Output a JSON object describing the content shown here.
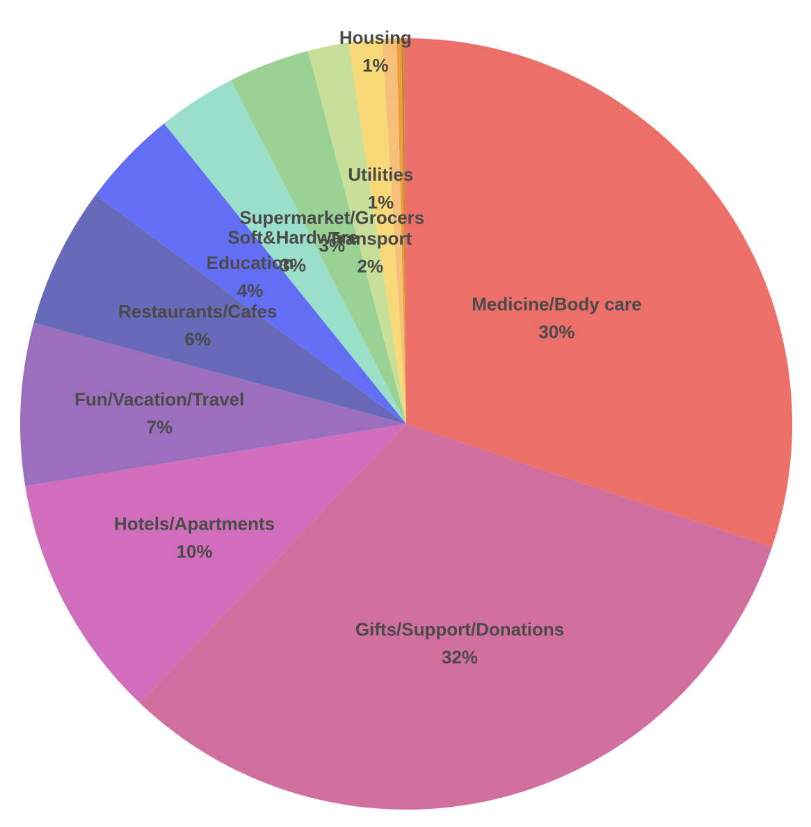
{
  "chart_data": {
    "type": "pie",
    "title": "",
    "start_angle_deg": 0,
    "direction": "clockwise",
    "slices": [
      {
        "label": "Medicine/Body care",
        "percent_label": "30%",
        "value": 30.2,
        "color": "#ec6f69",
        "show_label": true
      },
      {
        "label": "Gifts/Support/Donations",
        "percent_label": "32%",
        "value": 32.0,
        "color": "#d16f9e",
        "show_label": true
      },
      {
        "label": "Hotels/Apartments",
        "percent_label": "10%",
        "value": 10.3,
        "color": "#d06ebc",
        "show_label": true
      },
      {
        "label": "Fun/Vacation/Travel",
        "percent_label": "7%",
        "value": 6.8,
        "color": "#9b6fbd",
        "show_label": true
      },
      {
        "label": "Restaurants/Cafes",
        "percent_label": "6%",
        "value": 5.9,
        "color": "#666ab9",
        "show_label": true
      },
      {
        "label": "Education",
        "percent_label": "4%",
        "value": 4.1,
        "color": "#626ff4",
        "show_label": true
      },
      {
        "label": "Soft&Hardware",
        "percent_label": "3%",
        "value": 3.3,
        "color": "#9adfc9",
        "show_label": true
      },
      {
        "label": "Supermarket/Grocers",
        "percent_label": "3%",
        "value": 3.4,
        "color": "#9ad194",
        "show_label": true
      },
      {
        "label": "Transport",
        "percent_label": "2%",
        "value": 1.7,
        "color": "#c7df98",
        "show_label": true
      },
      {
        "label": "Utilities",
        "percent_label": "1%",
        "value": 1.4,
        "color": "#f8d978",
        "show_label": true
      },
      {
        "label": "Housing",
        "percent_label": "1%",
        "value": 0.6,
        "color": "#f6c07a",
        "show_label": true
      },
      {
        "label": "",
        "percent_label": "",
        "value": 0.2,
        "color": "#ef9b3e",
        "show_label": false
      },
      {
        "label": "",
        "percent_label": "",
        "value": 0.1,
        "color": "#c8862e",
        "show_label": false
      },
      {
        "label": "",
        "percent_label": "",
        "value": 0.1,
        "color": "#e07a5f",
        "show_label": false
      }
    ]
  }
}
